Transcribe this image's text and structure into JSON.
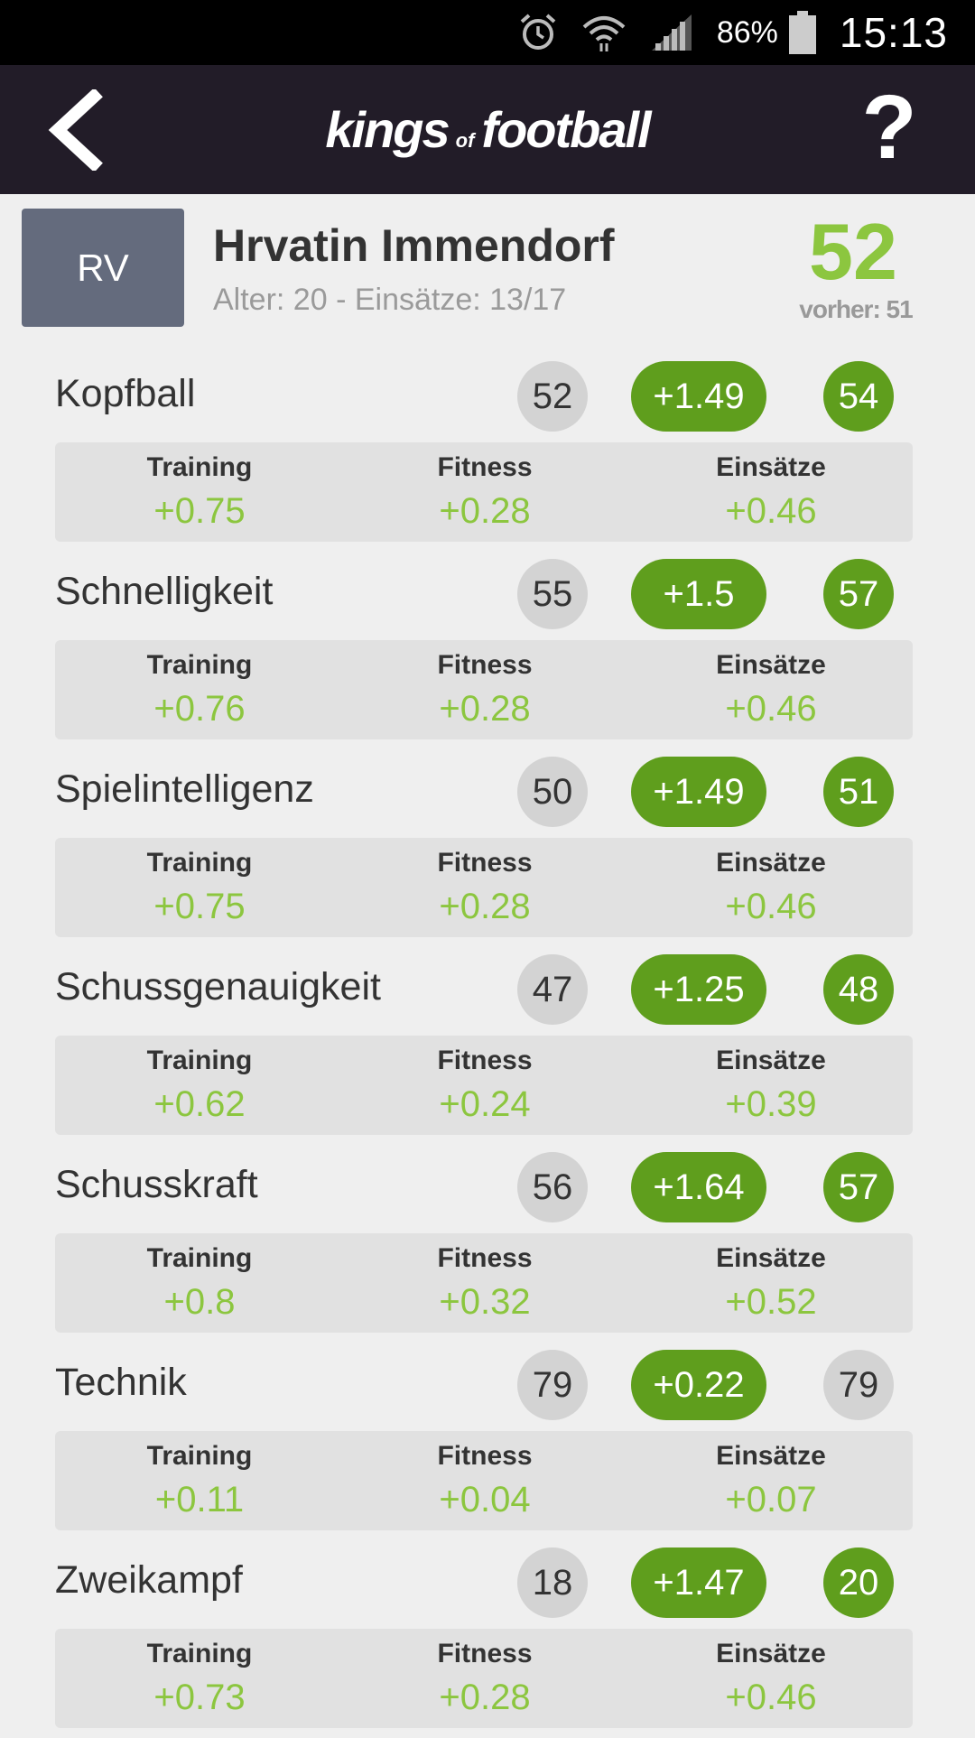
{
  "status_bar": {
    "battery_pct": "86%",
    "time": "15:13",
    "icons": [
      "alarm-icon",
      "wifi-icon",
      "signal-icon",
      "battery-icon"
    ]
  },
  "app_bar": {
    "logo_left": "kings",
    "logo_of": "of",
    "logo_right": "football",
    "help_label": "?",
    "icons": [
      "back-arrow-icon"
    ]
  },
  "player": {
    "position": "RV",
    "name": "Hrvatin Immendorf",
    "meta": "Alter: 20 - Einsätze: 13/17",
    "overall": "52",
    "previous": "vorher: 51"
  },
  "detail_labels": {
    "training": "Training",
    "fitness": "Fitness",
    "einsaetze": "Einsätze"
  },
  "attributes": [
    {
      "name": "Kopfball",
      "old": "52",
      "gain": "+1.49",
      "new": "54",
      "training": "+0.75",
      "fitness": "+0.28",
      "einsaetze": "+0.46"
    },
    {
      "name": "Schnelligkeit",
      "old": "55",
      "gain": "+1.5",
      "new": "57",
      "training": "+0.76",
      "fitness": "+0.28",
      "einsaetze": "+0.46"
    },
    {
      "name": "Spielintelligenz",
      "old": "50",
      "gain": "+1.49",
      "new": "51",
      "training": "+0.75",
      "fitness": "+0.28",
      "einsaetze": "+0.46"
    },
    {
      "name": "Schussgenauigkeit",
      "old": "47",
      "gain": "+1.25",
      "new": "48",
      "training": "+0.62",
      "fitness": "+0.24",
      "einsaetze": "+0.39"
    },
    {
      "name": "Schusskraft",
      "old": "56",
      "gain": "+1.64",
      "new": "57",
      "training": "+0.8",
      "fitness": "+0.32",
      "einsaetze": "+0.52"
    },
    {
      "name": "Technik",
      "old": "79",
      "gain": "+0.22",
      "new": "79",
      "training": "+0.11",
      "fitness": "+0.04",
      "einsaetze": "+0.07"
    },
    {
      "name": "Zweikampf",
      "old": "18",
      "gain": "+1.47",
      "new": "20",
      "training": "+0.73",
      "fitness": "+0.28",
      "einsaetze": "+0.46"
    }
  ],
  "colors": {
    "app_bar": "#221c28",
    "accent_green": "#8cc63f",
    "pill_green": "#5f9e1d",
    "badge_slate": "#646b7d"
  }
}
